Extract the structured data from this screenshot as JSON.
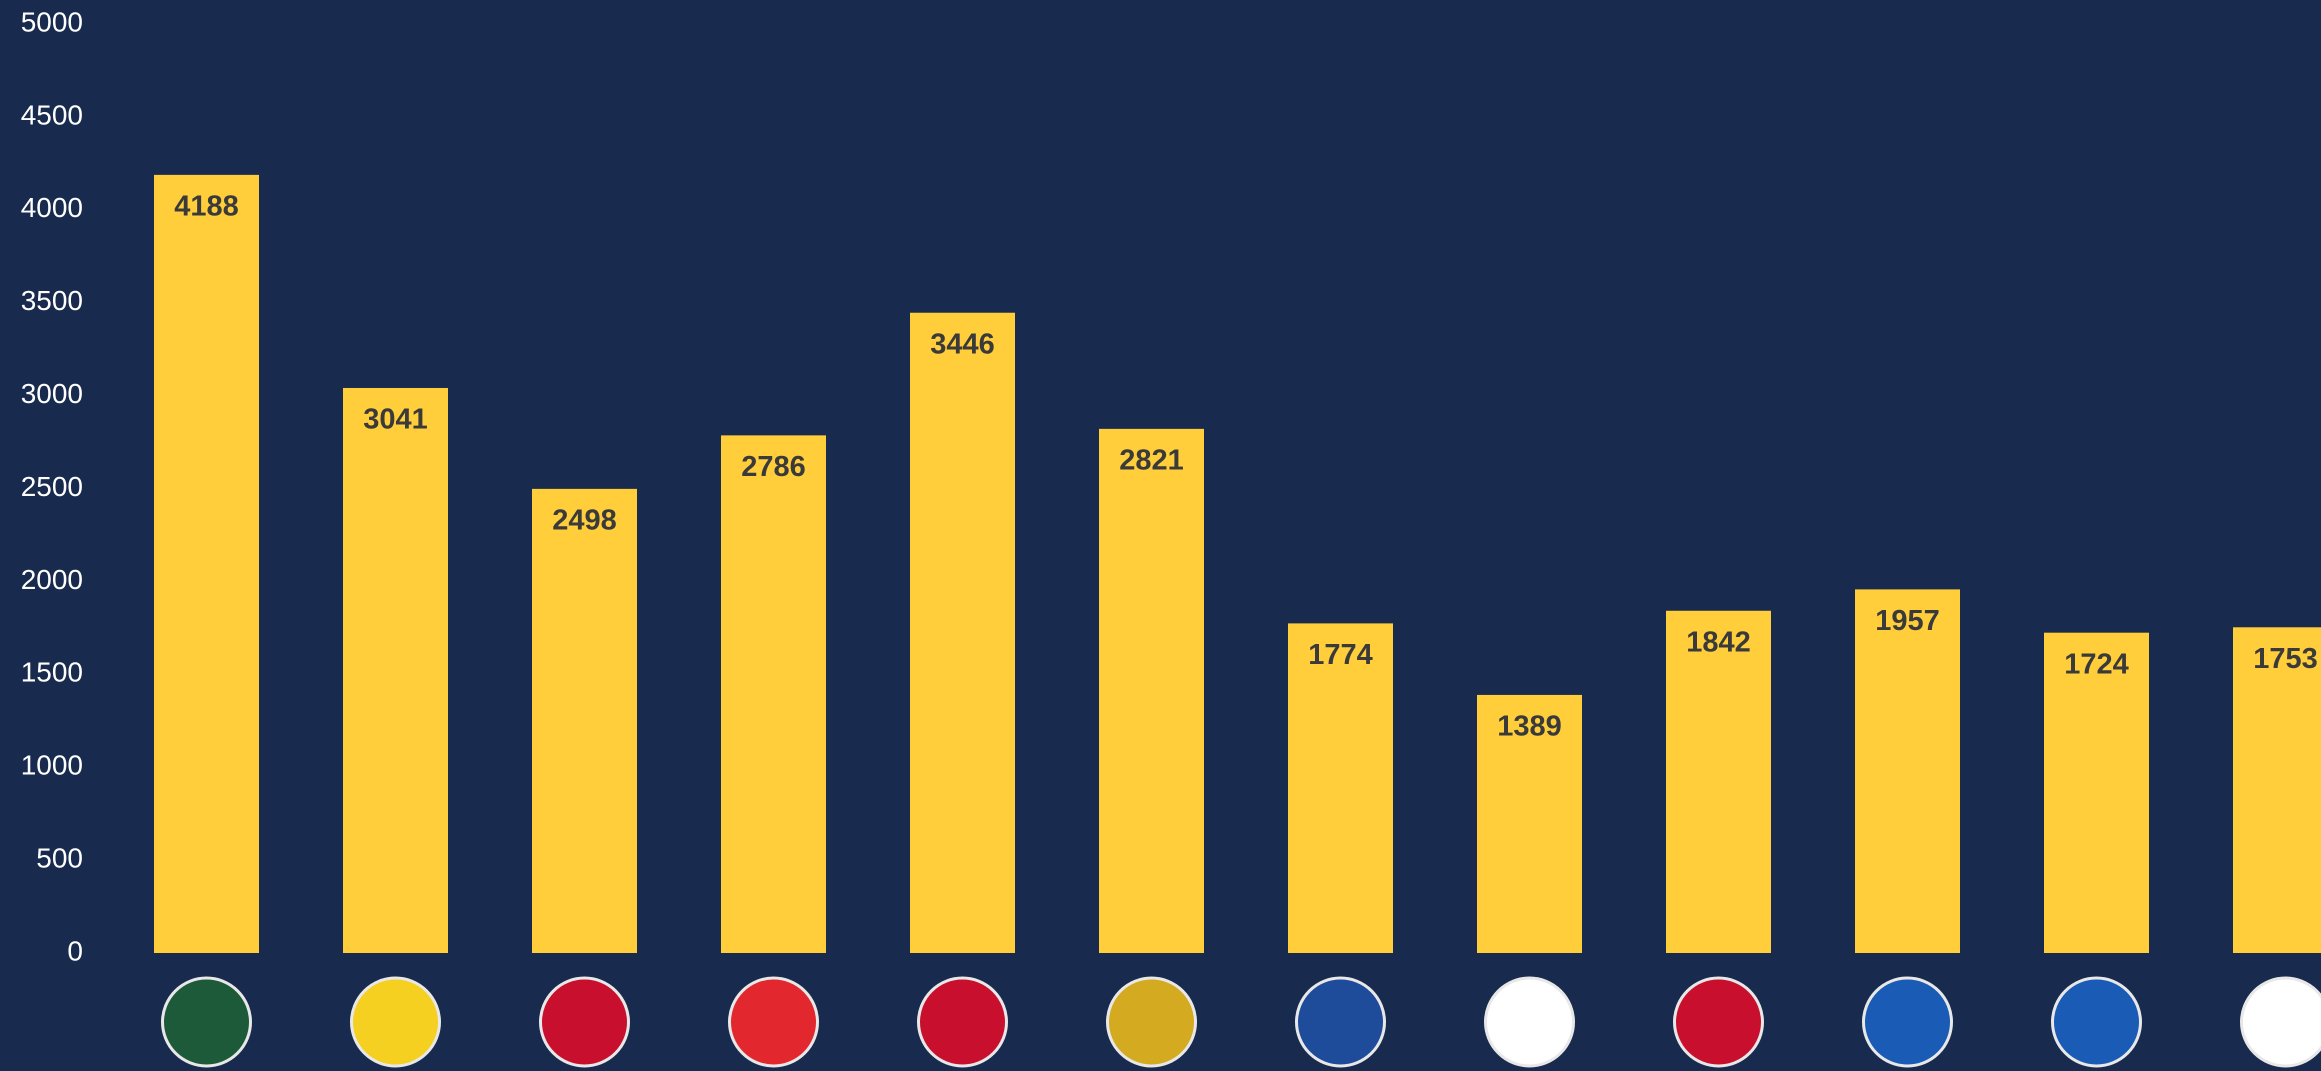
{
  "chart_data": {
    "type": "bar",
    "categories": [
      null,
      null,
      null,
      null,
      null,
      null,
      null,
      null,
      null,
      null,
      null,
      null
    ],
    "values": [
      4188,
      3041,
      2498,
      2786,
      3446,
      2821,
      1774,
      1389,
      1842,
      1957,
      1724,
      1753
    ],
    "color": "#ffce3a",
    "ylim": [
      0,
      5000
    ],
    "yticks": [
      0,
      500,
      1000,
      1500,
      2000,
      2500,
      3000,
      3500,
      4000,
      4500,
      5000
    ],
    "grid": false
  }
}
